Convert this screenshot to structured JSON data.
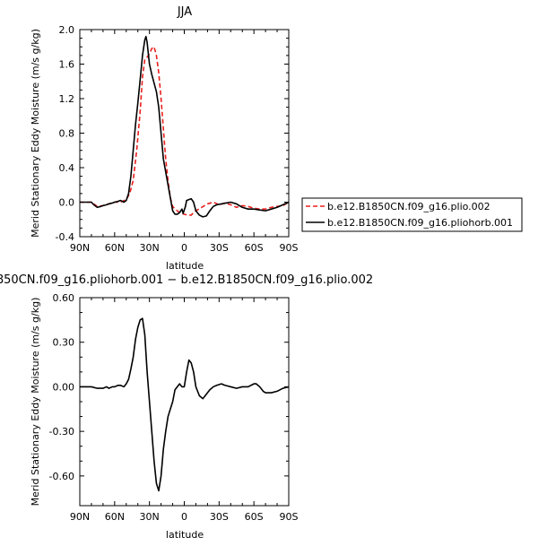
{
  "chart_data": [
    {
      "type": "line",
      "title": "JJA",
      "xlabel": "latitude",
      "ylabel": "Merid Stationary Eddy Moisture (m/s g/kg)",
      "xlim": [
        90,
        -90
      ],
      "ylim": [
        -0.4,
        2.0
      ],
      "x_ticks": [
        "90N",
        "60N",
        "30N",
        "0",
        "30S",
        "60S",
        "90S"
      ],
      "y_ticks": [
        "-0.4",
        "0.0",
        "0.4",
        "0.8",
        "1.2",
        "1.6",
        "2.0"
      ],
      "legend_position": "right",
      "series": [
        {
          "name": "b.e12.B1850CN.f09_g16.plio.002",
          "color": "#e8201e",
          "style": "dashed",
          "x": [
            90,
            80,
            75,
            70,
            65,
            60,
            55,
            50,
            47,
            44,
            41,
            38,
            36,
            34,
            32,
            30,
            28,
            26,
            24,
            22,
            20,
            18,
            16,
            14,
            12,
            10,
            8,
            6,
            4,
            2,
            0,
            -3,
            -6,
            -8,
            -10,
            -15,
            -20,
            -25,
            -30,
            -35,
            -40,
            -45,
            -50,
            -55,
            -60,
            -65,
            -70,
            -75,
            -80,
            -85,
            -90
          ],
          "values": [
            0.0,
            0.0,
            -0.05,
            -0.04,
            -0.02,
            0.0,
            0.0,
            0.03,
            0.1,
            0.25,
            0.6,
            1.05,
            1.45,
            1.65,
            1.68,
            1.72,
            1.78,
            1.8,
            1.7,
            1.5,
            1.2,
            0.85,
            0.5,
            0.25,
            0.05,
            -0.05,
            -0.08,
            -0.1,
            -0.12,
            -0.13,
            -0.14,
            -0.15,
            -0.15,
            -0.12,
            -0.1,
            -0.06,
            -0.02,
            0.0,
            -0.03,
            -0.01,
            -0.03,
            -0.06,
            -0.04,
            -0.05,
            -0.07,
            -0.08,
            -0.08,
            -0.06,
            -0.05,
            -0.04,
            0.0
          ]
        },
        {
          "name": "b.e12.B1850CN.f09_g16.pliohorb.001",
          "color": "#000000",
          "style": "solid",
          "x": [
            90,
            85,
            80,
            78,
            75,
            72,
            70,
            67,
            65,
            62,
            60,
            57,
            55,
            52,
            50,
            48,
            46,
            44,
            42,
            40,
            38,
            36,
            34,
            33,
            32,
            30,
            28,
            26,
            24,
            22,
            20,
            18,
            16,
            14,
            12,
            10,
            8,
            6,
            4,
            2,
            1,
            -1,
            -2,
            -4,
            -6,
            -8,
            -10,
            -13,
            -16,
            -19,
            -22,
            -25,
            -28,
            -32,
            -36,
            -40,
            -45,
            -50,
            -55,
            -60,
            -65,
            -70,
            -75,
            -80,
            -85,
            -90
          ],
          "values": [
            0.0,
            0.0,
            0.0,
            -0.03,
            -0.06,
            -0.05,
            -0.04,
            -0.03,
            -0.02,
            -0.01,
            0.0,
            0.01,
            0.02,
            0.0,
            0.02,
            0.1,
            0.3,
            0.6,
            0.9,
            1.15,
            1.42,
            1.7,
            1.88,
            1.92,
            1.85,
            1.6,
            1.48,
            1.38,
            1.28,
            1.1,
            0.8,
            0.5,
            0.35,
            0.2,
            0.05,
            -0.1,
            -0.14,
            -0.14,
            -0.12,
            -0.08,
            -0.13,
            -0.05,
            0.02,
            0.03,
            0.04,
            0.0,
            -0.1,
            -0.15,
            -0.17,
            -0.16,
            -0.1,
            -0.05,
            -0.03,
            -0.02,
            -0.01,
            0.0,
            -0.02,
            -0.06,
            -0.08,
            -0.08,
            -0.09,
            -0.1,
            -0.08,
            -0.06,
            -0.03,
            0.0
          ]
        }
      ]
    },
    {
      "type": "line",
      "title": "850CN.f09_g16.pliohorb.001 − b.e12.B1850CN.f09_g16.plio.002",
      "xlabel": "latitude",
      "ylabel": "Merid Stationary Eddy Moisture (m/s g/kg)",
      "xlim": [
        90,
        -90
      ],
      "ylim": [
        -0.8,
        0.6
      ],
      "x_ticks": [
        "90N",
        "60N",
        "30N",
        "0",
        "30S",
        "60S",
        "90S"
      ],
      "y_ticks": [
        "-0.60",
        "-0.30",
        "0.00",
        "0.30",
        "0.60"
      ],
      "series": [
        {
          "color": "#000000",
          "style": "solid",
          "x": [
            90,
            85,
            80,
            75,
            70,
            67,
            65,
            62,
            60,
            57,
            55,
            52,
            50,
            48,
            46,
            44,
            42,
            40,
            38,
            36,
            34,
            32,
            30,
            28,
            26,
            24,
            22,
            20,
            18,
            16,
            14,
            12,
            10,
            8,
            6,
            4,
            2,
            0,
            -2,
            -4,
            -6,
            -8,
            -10,
            -13,
            -16,
            -19,
            -22,
            -25,
            -28,
            -32,
            -35,
            -40,
            -45,
            -50,
            -55,
            -60,
            -62,
            -65,
            -68,
            -70,
            -75,
            -80,
            -85,
            -90
          ],
          "values": [
            0.0,
            0.0,
            0.0,
            -0.01,
            -0.01,
            0.0,
            -0.01,
            0.0,
            0.0,
            0.01,
            0.01,
            0.0,
            0.02,
            0.05,
            0.12,
            0.2,
            0.32,
            0.4,
            0.45,
            0.46,
            0.35,
            0.1,
            -0.1,
            -0.3,
            -0.5,
            -0.65,
            -0.7,
            -0.6,
            -0.42,
            -0.3,
            -0.2,
            -0.15,
            -0.1,
            -0.02,
            0.0,
            0.02,
            0.0,
            0.0,
            0.1,
            0.18,
            0.16,
            0.1,
            0.0,
            -0.06,
            -0.08,
            -0.05,
            -0.02,
            0.0,
            0.01,
            0.02,
            0.01,
            0.0,
            -0.01,
            0.0,
            0.0,
            0.02,
            0.02,
            0.0,
            -0.03,
            -0.04,
            -0.04,
            -0.03,
            -0.01,
            0.0
          ]
        }
      ]
    }
  ]
}
